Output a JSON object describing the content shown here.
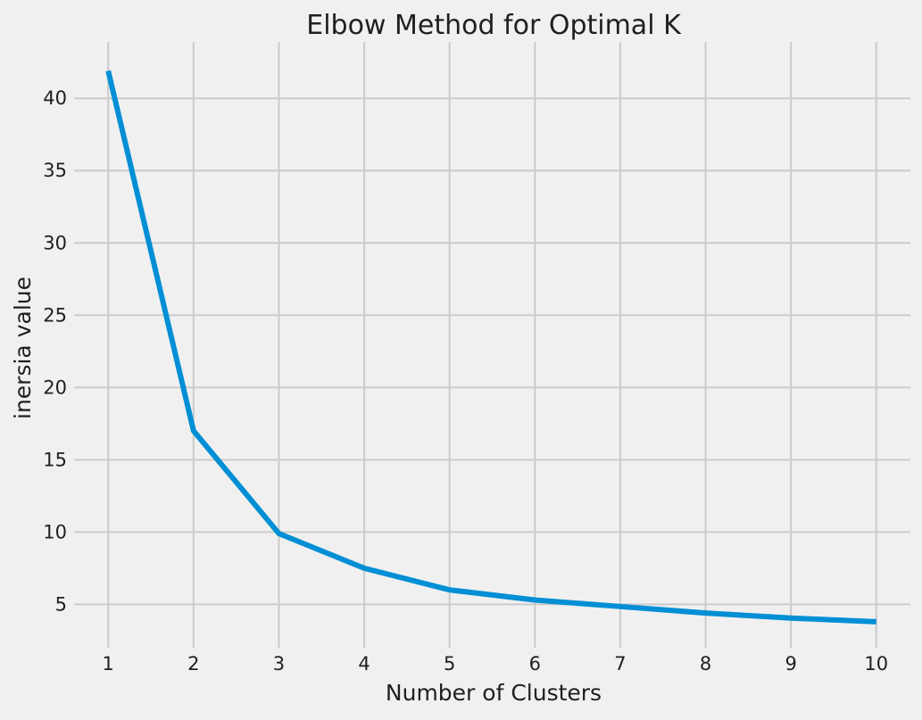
{
  "chart_data": {
    "type": "line",
    "title": "Elbow Method for Optimal K",
    "xlabel": "Number of Clusters",
    "ylabel": "inersia value",
    "x": [
      1,
      2,
      3,
      4,
      5,
      6,
      7,
      8,
      9,
      10
    ],
    "series": [
      {
        "values": [
          41.9,
          17.0,
          9.9,
          7.5,
          6.0,
          5.3,
          4.85,
          4.4,
          4.05,
          3.8
        ],
        "color": "#008fd5"
      }
    ],
    "xticks": [
      1,
      2,
      3,
      4,
      5,
      6,
      7,
      8,
      9,
      10
    ],
    "yticks": [
      5,
      10,
      15,
      20,
      25,
      30,
      35,
      40
    ],
    "xlim": [
      0.6,
      10.4
    ],
    "ylim": [
      2.0,
      43.9
    ],
    "grid": true,
    "background": "#f0f0f0",
    "grid_color": "#cbcbcb"
  }
}
